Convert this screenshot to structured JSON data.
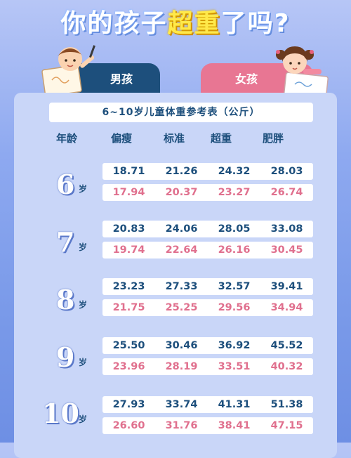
{
  "title": {
    "part1": "你的孩子",
    "highlight": "超重",
    "part2": "了吗",
    "question": "?"
  },
  "tabs": {
    "boy": "男孩",
    "girl": "女孩"
  },
  "table": {
    "title": "6~10岁儿童体重参考表（公斤）",
    "headers": [
      "年龄",
      "偏瘦",
      "标准",
      "超重",
      "肥胖"
    ],
    "age_suffix": "岁",
    "groups": [
      {
        "age": "6",
        "boy": [
          "18.71",
          "21.26",
          "24.32",
          "28.03"
        ],
        "girl": [
          "17.94",
          "20.37",
          "23.27",
          "26.74"
        ]
      },
      {
        "age": "7",
        "boy": [
          "20.83",
          "24.06",
          "28.05",
          "33.08"
        ],
        "girl": [
          "19.74",
          "22.64",
          "26.16",
          "30.45"
        ]
      },
      {
        "age": "8",
        "boy": [
          "23.23",
          "27.33",
          "32.57",
          "39.41"
        ],
        "girl": [
          "21.75",
          "25.25",
          "29.56",
          "34.94"
        ]
      },
      {
        "age": "9",
        "boy": [
          "25.50",
          "30.46",
          "36.92",
          "45.52"
        ],
        "girl": [
          "23.96",
          "28.19",
          "33.51",
          "40.32"
        ]
      },
      {
        "age": "10",
        "boy": [
          "27.93",
          "33.74",
          "41.31",
          "51.38"
        ],
        "girl": [
          "26.60",
          "31.76",
          "38.41",
          "47.15"
        ]
      }
    ]
  },
  "colors": {
    "boy": "#1d4f7c",
    "girl": "#e0708e",
    "highlight": "#ffe94a"
  }
}
